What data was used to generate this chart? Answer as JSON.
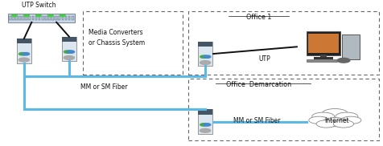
{
  "bg_color": "#ffffff",
  "labels": {
    "utp_switch": "UTP Switch",
    "media_converters": "Media Converters\nor Chassis System",
    "office1": "Office 1",
    "utp": "UTP",
    "mm_sm_fiber_top": "MM or SM Fiber",
    "office_demarcation": "Office  Demarcation",
    "mm_sm_fiber_bottom": "MM or SM Fiber",
    "internet": "Internet"
  },
  "fiber_color": "#5bb8e8",
  "utp_color": "#111111",
  "dashed_color": "#666666"
}
